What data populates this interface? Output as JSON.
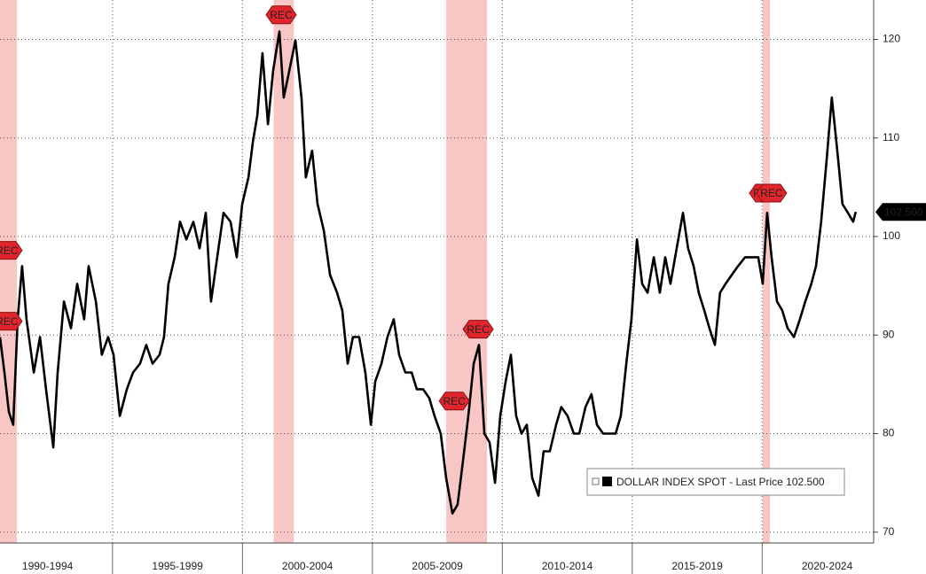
{
  "chart_data": {
    "type": "line",
    "x": [
      1990.67,
      1990.84,
      1991.01,
      1991.18,
      1991.35,
      1991.52,
      1991.69,
      1991.97,
      1992.21,
      1992.44,
      1992.72,
      1992.89,
      1993.13,
      1993.4,
      1993.64,
      1993.91,
      1994.08,
      1994.36,
      1994.59,
      1994.83,
      1995.04,
      1995.28,
      1995.55,
      1995.79,
      1996.06,
      1996.3,
      1996.54,
      1996.81,
      1996.98,
      1997.15,
      1997.39,
      1997.6,
      1997.84,
      1998.11,
      1998.35,
      1998.59,
      1998.79,
      1999.03,
      1999.27,
      1999.54,
      1999.78,
      1999.99,
      2000.23,
      2000.4,
      2000.57,
      2000.77,
      2000.98,
      2001.18,
      2001.42,
      2001.59,
      2001.8,
      2002.04,
      2002.27,
      2002.44,
      2002.68,
      2002.89,
      2003.13,
      2003.37,
      2003.64,
      2003.84,
      2004.05,
      2004.25,
      2004.49,
      2004.73,
      2004.94,
      2005.11,
      2005.35,
      2005.58,
      2005.82,
      2006.03,
      2006.27,
      2006.51,
      2006.71,
      2006.95,
      2007.19,
      2007.39,
      2007.63,
      2007.84,
      2008.08,
      2008.28,
      2008.49,
      2008.69,
      2008.9,
      2009.1,
      2009.31,
      2009.51,
      2009.72,
      2009.92,
      2010.13,
      2010.33,
      2010.53,
      2010.74,
      2010.94,
      2011.15,
      2011.39,
      2011.59,
      2011.83,
      2012.07,
      2012.27,
      2012.51,
      2012.75,
      2012.96,
      2013.2,
      2013.43,
      2013.64,
      2013.88,
      2014.12,
      2014.36,
      2014.56,
      2014.77,
      2014.97,
      2015.18,
      2015.38,
      2015.59,
      2015.83,
      2016.06,
      2016.27,
      2016.47,
      2016.71,
      2016.95,
      2017.15,
      2017.36,
      2017.56,
      2017.77,
      2017.97,
      2018.18,
      2018.38,
      2018.59,
      2018.83,
      2019.07,
      2019.34,
      2019.61,
      2019.85,
      2020.02,
      2020.19,
      2020.36,
      2020.57,
      2020.77,
      2020.98,
      2021.22,
      2021.45,
      2021.66,
      2021.89,
      2022.07,
      2022.27,
      2022.48,
      2022.68,
      2022.89,
      2023.09,
      2023.3,
      2023.5,
      2023.6
    ],
    "series": [
      {
        "name": "DOLLAR INDEX SPOT - Last Price 102.500",
        "color": "#000000",
        "values": [
          89.8,
          86.2,
          82.2,
          80.9,
          91.6,
          97,
          91.6,
          86.2,
          89.8,
          84.5,
          78.6,
          86.2,
          93.4,
          90.7,
          95.2,
          91.6,
          97,
          93.4,
          88,
          89.8,
          88,
          81.8,
          84.5,
          86.2,
          87.1,
          89,
          87.1,
          88,
          89.8,
          95.2,
          97.9,
          101.5,
          99.7,
          101.5,
          98.8,
          102.4,
          93.4,
          97.9,
          102.4,
          101.5,
          97.9,
          103.3,
          106,
          109.6,
          112.3,
          118.6,
          111.4,
          116.8,
          120.8,
          114.1,
          116.8,
          119.9,
          114.1,
          106,
          108.7,
          103.3,
          100.6,
          96.1,
          94.3,
          92.5,
          87.1,
          89.8,
          89.8,
          86.2,
          80.9,
          85.3,
          87.1,
          89.8,
          91.6,
          88,
          86.2,
          86.2,
          84.5,
          84.5,
          83.6,
          81.8,
          80,
          75.5,
          71.9,
          72.8,
          77.3,
          81.8,
          87.1,
          89,
          80,
          79.1,
          75,
          81.8,
          85.3,
          88,
          81.8,
          80,
          80.9,
          75.5,
          73.7,
          78.2,
          78.2,
          80.9,
          82.7,
          81.8,
          80,
          80,
          82.7,
          84,
          80.9,
          80,
          80,
          80,
          81.8,
          87.1,
          91.6,
          99.7,
          95.2,
          94.3,
          97.9,
          94.3,
          97.9,
          95.2,
          98.8,
          102.4,
          98.8,
          97,
          94.3,
          92.5,
          90.7,
          89,
          94.3,
          95.2,
          96.1,
          97,
          97.9,
          97.9,
          97.9,
          95.2,
          102.4,
          97.9,
          93.4,
          92.5,
          90.7,
          89.8,
          91.6,
          93.4,
          95.2,
          97,
          101.5,
          107.8,
          114.1,
          108.7,
          103.3,
          102.4,
          101.5,
          102.5
        ]
      }
    ],
    "last_price": {
      "value": 102.5,
      "label": "102.500"
    },
    "categories": [
      "1990-1994",
      "1995-1999",
      "2000-2004",
      "2005-2009",
      "2010-2014",
      "2015-2019",
      "2020-2024"
    ],
    "xlim": [
      1990.67,
      2024.29
    ],
    "xticks": [
      1995,
      2000,
      2005,
      2010,
      2015,
      2020
    ],
    "ylim": [
      68.9,
      124
    ],
    "yticks": [
      70,
      80,
      90,
      100,
      110,
      120
    ],
    "grid": true,
    "recessions": [
      {
        "start": 1990.67,
        "end": 1991.32
      },
      {
        "start": 2001.2,
        "end": 2001.98
      },
      {
        "start": 2007.84,
        "end": 2009.41
      },
      {
        "start": 2020.02,
        "end": 2020.3
      }
    ],
    "recession_color": "#f7b3b3",
    "annotations": [
      {
        "text": "REC",
        "x": 1990.94,
        "y": 98.6
      },
      {
        "text": "REC",
        "x": 1990.94,
        "y": 91.4
      },
      {
        "text": "REC",
        "x": 2001.49,
        "y": 122.5
      },
      {
        "text": "REC",
        "x": 2008.15,
        "y": 83.3
      },
      {
        "text": "REC",
        "x": 2009.07,
        "y": 90.6
      },
      {
        "text": "REC",
        "x": 2020.09,
        "y": 104.4
      },
      {
        "text": "REC",
        "x": 2020.36,
        "y": 104.4
      }
    ]
  }
}
